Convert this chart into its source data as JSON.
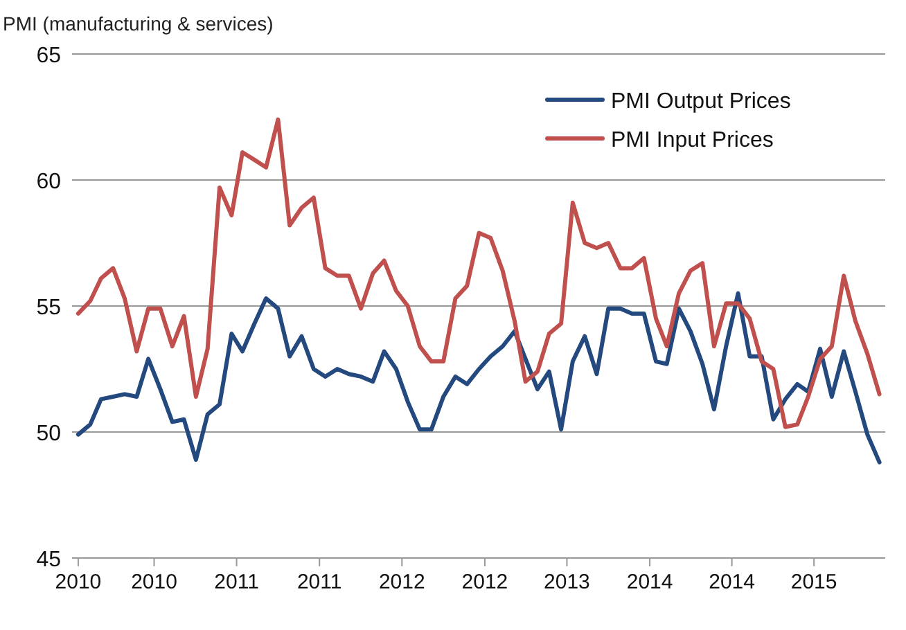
{
  "chart_data": {
    "type": "line",
    "ylabel": "PMI (manufacturing & services)",
    "x": [
      "2010-01",
      "2010-02",
      "2010-03",
      "2010-04",
      "2010-05",
      "2010-06",
      "2010-07",
      "2010-08",
      "2010-09",
      "2010-10",
      "2010-11",
      "2010-12",
      "2011-01",
      "2011-02",
      "2011-03",
      "2011-04",
      "2011-05",
      "2011-06",
      "2011-07",
      "2011-08",
      "2011-09",
      "2011-10",
      "2011-11",
      "2011-12",
      "2012-01",
      "2012-02",
      "2012-03",
      "2012-04",
      "2012-05",
      "2012-06",
      "2012-07",
      "2012-08",
      "2012-09",
      "2012-10",
      "2012-11",
      "2012-12",
      "2013-01",
      "2013-02",
      "2013-03",
      "2013-04",
      "2013-05",
      "2013-06",
      "2013-07",
      "2013-08",
      "2013-09",
      "2013-10",
      "2013-11",
      "2013-12",
      "2014-01",
      "2014-02",
      "2014-03",
      "2014-04",
      "2014-05",
      "2014-06",
      "2014-07",
      "2014-08",
      "2014-09",
      "2014-10",
      "2014-11",
      "2014-12",
      "2015-01",
      "2015-02",
      "2015-03",
      "2015-04",
      "2015-05",
      "2015-06",
      "2015-07",
      "2015-08",
      "2015-09"
    ],
    "series": [
      {
        "name": "PMI Output Prices",
        "color": "#23497e",
        "values": [
          49.9,
          50.3,
          51.3,
          51.4,
          51.5,
          51.4,
          52.9,
          51.7,
          50.4,
          50.5,
          48.9,
          50.7,
          51.1,
          53.9,
          53.2,
          54.3,
          55.3,
          54.9,
          53.0,
          53.8,
          52.5,
          52.2,
          52.5,
          52.3,
          52.2,
          52.0,
          53.2,
          52.5,
          51.2,
          50.1,
          50.1,
          51.4,
          52.2,
          51.9,
          52.5,
          53.0,
          53.4,
          54.0,
          52.9,
          51.7,
          52.4,
          50.1,
          52.8,
          53.8,
          52.3,
          54.9,
          54.9,
          54.7,
          54.7,
          52.8,
          52.7,
          54.9,
          54.0,
          52.7,
          50.9,
          53.4,
          55.5,
          53.0,
          53.0,
          50.5,
          51.3,
          51.9,
          51.6,
          53.3,
          51.4,
          53.2,
          51.6,
          49.9,
          48.8
        ]
      },
      {
        "name": "PMI Input Prices",
        "color": "#c0504d",
        "values": [
          54.7,
          55.2,
          56.1,
          56.5,
          55.3,
          53.2,
          54.9,
          54.9,
          53.4,
          54.6,
          51.4,
          53.3,
          59.7,
          58.6,
          61.1,
          60.8,
          60.5,
          62.4,
          58.2,
          58.9,
          59.3,
          56.5,
          56.2,
          56.2,
          54.9,
          56.3,
          56.8,
          55.6,
          55.0,
          53.4,
          52.8,
          52.8,
          55.3,
          55.8,
          57.9,
          57.7,
          56.4,
          54.4,
          52.0,
          52.4,
          53.9,
          54.3,
          59.1,
          57.5,
          57.3,
          57.5,
          56.5,
          56.5,
          56.9,
          54.5,
          53.4,
          55.5,
          56.4,
          56.7,
          53.4,
          55.1,
          55.1,
          54.5,
          52.8,
          52.5,
          50.2,
          50.3,
          51.4,
          52.9,
          53.4,
          56.2,
          54.4,
          53.1,
          51.5
        ]
      }
    ],
    "xlim": [
      "2009-12-16",
      "2015-09-16"
    ],
    "xticks": [
      {
        "value": "2010-01-01",
        "label": "2010"
      },
      {
        "value": "2010-07-16",
        "label": "2010"
      },
      {
        "value": "2011-02-14",
        "label": "2011"
      },
      {
        "value": "2011-09-16",
        "label": "2011"
      },
      {
        "value": "2012-04-16",
        "label": "2012"
      },
      {
        "value": "2012-11-16",
        "label": "2012"
      },
      {
        "value": "2013-06-16",
        "label": "2013"
      },
      {
        "value": "2014-01-16",
        "label": "2014"
      },
      {
        "value": "2014-08-16",
        "label": "2014"
      },
      {
        "value": "2015-03-16",
        "label": "2015"
      }
    ],
    "ylim": [
      45,
      65
    ],
    "yticks": [
      45,
      50,
      55,
      60,
      65
    ],
    "grid": "y",
    "legend": "top right",
    "marker": "none",
    "line_style": "solid"
  }
}
